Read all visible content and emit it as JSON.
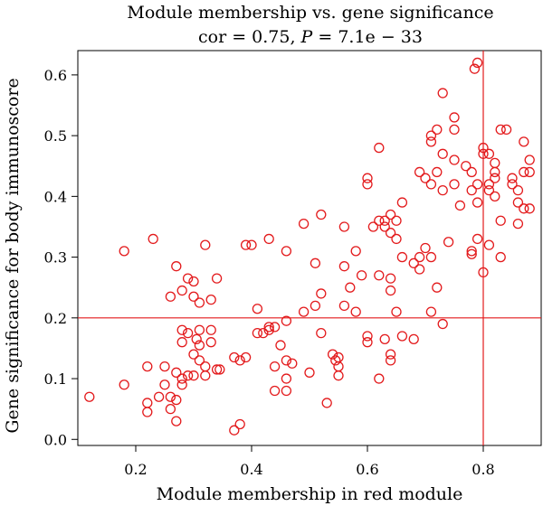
{
  "chart_data": {
    "type": "scatter",
    "title": "Module membership vs. gene significance",
    "subtitle": "cor = 0.75, P = 7.1e − 33",
    "subtitle_parts": {
      "pre": "cor = 0.75, ",
      "p_symbol": "P",
      "post": " = 7.1e − 33"
    },
    "xlabel": "Module membership in red module",
    "ylabel": "Gene significance for body immunoscore",
    "xlim": [
      0.1,
      0.9
    ],
    "ylim": [
      -0.01,
      0.64
    ],
    "x_ticks": [
      "0.2",
      "0.4",
      "0.6",
      "0.8"
    ],
    "y_ticks": [
      "0.0",
      "0.1",
      "0.2",
      "0.3",
      "0.4",
      "0.5",
      "0.6"
    ],
    "reference_lines": {
      "vertical_x": 0.8,
      "horizontal_y": 0.2
    },
    "grid": false,
    "marker_color": "#e31a1c",
    "points": [
      [
        0.12,
        0.07
      ],
      [
        0.18,
        0.09
      ],
      [
        0.18,
        0.31
      ],
      [
        0.22,
        0.06
      ],
      [
        0.22,
        0.045
      ],
      [
        0.22,
        0.12
      ],
      [
        0.23,
        0.33
      ],
      [
        0.24,
        0.07
      ],
      [
        0.25,
        0.09
      ],
      [
        0.25,
        0.12
      ],
      [
        0.26,
        0.235
      ],
      [
        0.26,
        0.07
      ],
      [
        0.26,
        0.05
      ],
      [
        0.27,
        0.065
      ],
      [
        0.27,
        0.11
      ],
      [
        0.27,
        0.03
      ],
      [
        0.27,
        0.285
      ],
      [
        0.28,
        0.245
      ],
      [
        0.28,
        0.18
      ],
      [
        0.28,
        0.16
      ],
      [
        0.28,
        0.1
      ],
      [
        0.28,
        0.09
      ],
      [
        0.29,
        0.175
      ],
      [
        0.29,
        0.105
      ],
      [
        0.29,
        0.265
      ],
      [
        0.3,
        0.26
      ],
      [
        0.3,
        0.235
      ],
      [
        0.3,
        0.14
      ],
      [
        0.3,
        0.105
      ],
      [
        0.305,
        0.165
      ],
      [
        0.31,
        0.18
      ],
      [
        0.31,
        0.155
      ],
      [
        0.31,
        0.13
      ],
      [
        0.31,
        0.225
      ],
      [
        0.32,
        0.32
      ],
      [
        0.32,
        0.12
      ],
      [
        0.32,
        0.105
      ],
      [
        0.33,
        0.23
      ],
      [
        0.33,
        0.18
      ],
      [
        0.33,
        0.16
      ],
      [
        0.34,
        0.115
      ],
      [
        0.34,
        0.265
      ],
      [
        0.345,
        0.115
      ],
      [
        0.37,
        0.015
      ],
      [
        0.37,
        0.135
      ],
      [
        0.38,
        0.025
      ],
      [
        0.38,
        0.13
      ],
      [
        0.39,
        0.135
      ],
      [
        0.39,
        0.32
      ],
      [
        0.4,
        0.32
      ],
      [
        0.41,
        0.215
      ],
      [
        0.41,
        0.175
      ],
      [
        0.42,
        0.175
      ],
      [
        0.43,
        0.33
      ],
      [
        0.43,
        0.18
      ],
      [
        0.43,
        0.185
      ],
      [
        0.44,
        0.185
      ],
      [
        0.44,
        0.08
      ],
      [
        0.44,
        0.12
      ],
      [
        0.45,
        0.155
      ],
      [
        0.46,
        0.31
      ],
      [
        0.46,
        0.195
      ],
      [
        0.46,
        0.13
      ],
      [
        0.46,
        0.1
      ],
      [
        0.46,
        0.08
      ],
      [
        0.47,
        0.125
      ],
      [
        0.49,
        0.355
      ],
      [
        0.49,
        0.21
      ],
      [
        0.5,
        0.11
      ],
      [
        0.51,
        0.29
      ],
      [
        0.51,
        0.22
      ],
      [
        0.52,
        0.37
      ],
      [
        0.52,
        0.24
      ],
      [
        0.52,
        0.175
      ],
      [
        0.53,
        0.06
      ],
      [
        0.54,
        0.14
      ],
      [
        0.545,
        0.13
      ],
      [
        0.55,
        0.105
      ],
      [
        0.55,
        0.12
      ],
      [
        0.55,
        0.135
      ],
      [
        0.56,
        0.35
      ],
      [
        0.56,
        0.285
      ],
      [
        0.56,
        0.22
      ],
      [
        0.57,
        0.25
      ],
      [
        0.58,
        0.21
      ],
      [
        0.58,
        0.31
      ],
      [
        0.59,
        0.27
      ],
      [
        0.6,
        0.43
      ],
      [
        0.6,
        0.42
      ],
      [
        0.6,
        0.17
      ],
      [
        0.6,
        0.16
      ],
      [
        0.61,
        0.35
      ],
      [
        0.62,
        0.36
      ],
      [
        0.62,
        0.27
      ],
      [
        0.62,
        0.1
      ],
      [
        0.62,
        0.48
      ],
      [
        0.63,
        0.36
      ],
      [
        0.63,
        0.35
      ],
      [
        0.63,
        0.165
      ],
      [
        0.64,
        0.37
      ],
      [
        0.64,
        0.34
      ],
      [
        0.64,
        0.265
      ],
      [
        0.64,
        0.245
      ],
      [
        0.64,
        0.14
      ],
      [
        0.64,
        0.13
      ],
      [
        0.65,
        0.36
      ],
      [
        0.65,
        0.33
      ],
      [
        0.65,
        0.21
      ],
      [
        0.66,
        0.39
      ],
      [
        0.66,
        0.3
      ],
      [
        0.66,
        0.17
      ],
      [
        0.68,
        0.29
      ],
      [
        0.68,
        0.165
      ],
      [
        0.69,
        0.44
      ],
      [
        0.69,
        0.3
      ],
      [
        0.69,
        0.28
      ],
      [
        0.7,
        0.43
      ],
      [
        0.7,
        0.315
      ],
      [
        0.71,
        0.5
      ],
      [
        0.71,
        0.49
      ],
      [
        0.71,
        0.42
      ],
      [
        0.71,
        0.3
      ],
      [
        0.71,
        0.21
      ],
      [
        0.72,
        0.51
      ],
      [
        0.72,
        0.44
      ],
      [
        0.72,
        0.25
      ],
      [
        0.73,
        0.57
      ],
      [
        0.73,
        0.47
      ],
      [
        0.73,
        0.41
      ],
      [
        0.73,
        0.19
      ],
      [
        0.74,
        0.325
      ],
      [
        0.75,
        0.53
      ],
      [
        0.75,
        0.51
      ],
      [
        0.75,
        0.46
      ],
      [
        0.75,
        0.42
      ],
      [
        0.76,
        0.385
      ],
      [
        0.77,
        0.45
      ],
      [
        0.78,
        0.44
      ],
      [
        0.78,
        0.41
      ],
      [
        0.78,
        0.31
      ],
      [
        0.78,
        0.305
      ],
      [
        0.785,
        0.61
      ],
      [
        0.79,
        0.62
      ],
      [
        0.79,
        0.42
      ],
      [
        0.79,
        0.39
      ],
      [
        0.79,
        0.33
      ],
      [
        0.8,
        0.48
      ],
      [
        0.8,
        0.47
      ],
      [
        0.8,
        0.275
      ],
      [
        0.81,
        0.47
      ],
      [
        0.81,
        0.42
      ],
      [
        0.81,
        0.41
      ],
      [
        0.81,
        0.32
      ],
      [
        0.82,
        0.455
      ],
      [
        0.82,
        0.44
      ],
      [
        0.82,
        0.43
      ],
      [
        0.82,
        0.4
      ],
      [
        0.83,
        0.51
      ],
      [
        0.83,
        0.36
      ],
      [
        0.83,
        0.3
      ],
      [
        0.84,
        0.51
      ],
      [
        0.85,
        0.43
      ],
      [
        0.85,
        0.42
      ],
      [
        0.86,
        0.41
      ],
      [
        0.86,
        0.39
      ],
      [
        0.86,
        0.355
      ],
      [
        0.87,
        0.49
      ],
      [
        0.87,
        0.44
      ],
      [
        0.87,
        0.38
      ],
      [
        0.88,
        0.46
      ],
      [
        0.88,
        0.44
      ],
      [
        0.88,
        0.38
      ]
    ]
  }
}
